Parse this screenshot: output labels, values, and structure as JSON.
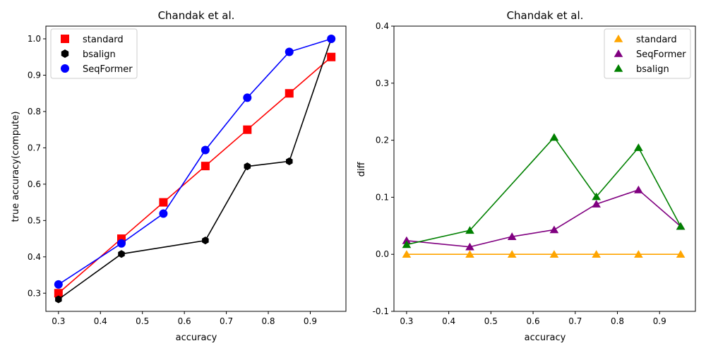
{
  "chart_data": [
    {
      "type": "line",
      "title": "Chandak et al.",
      "xlabel": "accuracy",
      "ylabel": "true accuracy(compute)",
      "xlim": [
        0.27,
        0.985
      ],
      "ylim": [
        0.25,
        1.035
      ],
      "xticks": [
        "0.3",
        "0.4",
        "0.5",
        "0.6",
        "0.7",
        "0.8",
        "0.9"
      ],
      "yticks": [
        "0.3",
        "0.4",
        "0.5",
        "0.6",
        "0.7",
        "0.8",
        "0.9",
        "1.0"
      ],
      "grid": false,
      "legend_position": "top-left",
      "series": [
        {
          "name": "standard",
          "color": "#ff0000",
          "marker": "square",
          "line": true,
          "x": [
            0.3,
            0.45,
            0.55,
            0.65,
            0.75,
            0.85,
            0.95
          ],
          "y": [
            0.3,
            0.45,
            0.55,
            0.65,
            0.75,
            0.85,
            0.95
          ]
        },
        {
          "name": "bsalign",
          "color": "#000000",
          "marker": "hexagon",
          "line": true,
          "x": [
            0.3,
            0.45,
            0.65,
            0.75,
            0.85,
            0.95
          ],
          "y": [
            0.283,
            0.408,
            0.445,
            0.649,
            0.663,
            1.0
          ]
        },
        {
          "name": "SeqFormer",
          "color": "#0000ff",
          "marker": "circle",
          "line": true,
          "x": [
            0.3,
            0.45,
            0.55,
            0.65,
            0.75,
            0.85,
            0.95
          ],
          "y": [
            0.324,
            0.437,
            0.519,
            0.694,
            0.838,
            0.964,
            1.0
          ]
        }
      ]
    },
    {
      "type": "line",
      "title": "Chandak et al.",
      "xlabel": "accuracy",
      "ylabel": "diff",
      "xlim": [
        0.27,
        0.985
      ],
      "ylim": [
        -0.1,
        0.4
      ],
      "xticks": [
        "0.3",
        "0.4",
        "0.5",
        "0.6",
        "0.7",
        "0.8",
        "0.9"
      ],
      "yticks": [
        "-0.1",
        "0.0",
        "0.1",
        "0.2",
        "0.3",
        "0.4"
      ],
      "grid": false,
      "legend_position": "top-right",
      "series": [
        {
          "name": "standard",
          "color": "#ffa500",
          "marker": "triangle",
          "line": true,
          "x": [
            0.3,
            0.45,
            0.55,
            0.65,
            0.75,
            0.85,
            0.95
          ],
          "y": [
            0.0,
            0.0,
            0.0,
            0.0,
            0.0,
            0.0,
            0.0
          ]
        },
        {
          "name": "SeqFormer",
          "color": "#800080",
          "marker": "triangle",
          "line": true,
          "x": [
            0.3,
            0.45,
            0.55,
            0.65,
            0.75,
            0.85,
            0.95
          ],
          "y": [
            0.024,
            0.013,
            0.031,
            0.043,
            0.088,
            0.113,
            0.049
          ]
        },
        {
          "name": "bsalign",
          "color": "#008000",
          "marker": "triangle",
          "line": true,
          "x": [
            0.3,
            0.45,
            0.65,
            0.75,
            0.85,
            0.95
          ],
          "y": [
            0.017,
            0.042,
            0.205,
            0.101,
            0.187,
            0.049
          ]
        }
      ]
    }
  ]
}
